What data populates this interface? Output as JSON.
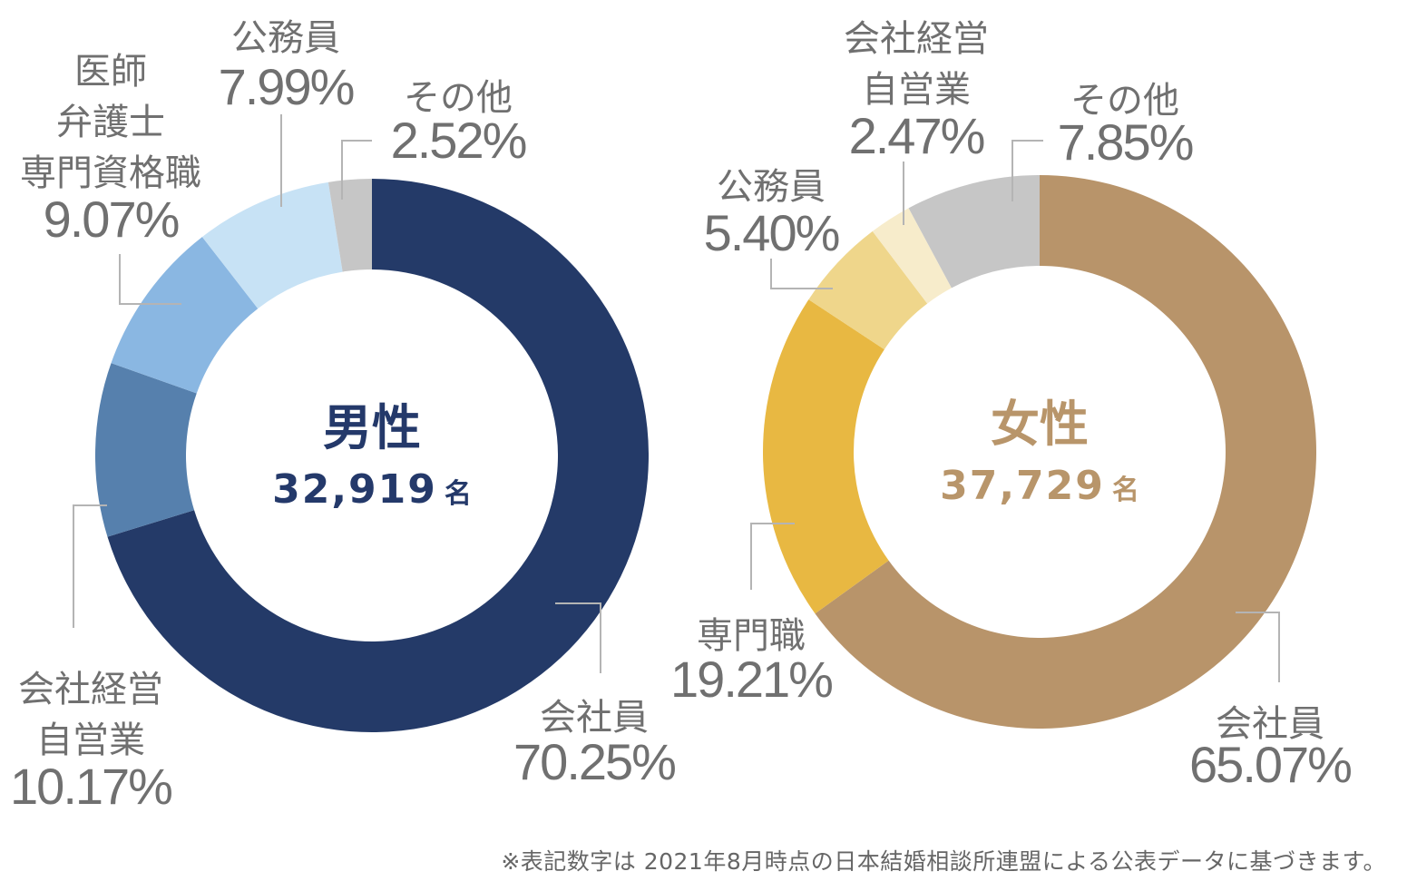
{
  "chart_data": [
    {
      "type": "pie",
      "title": "男性",
      "total": "32,919",
      "unit": "名",
      "center_color": "#24396a",
      "slices": [
        {
          "name": "会社員",
          "value": 70.25,
          "label_lines": [
            "会社員"
          ],
          "percent": "70.25%",
          "color": "#243a68"
        },
        {
          "name": "会社経営 自営業",
          "value": 10.17,
          "label_lines": [
            "会社経営",
            "自営業"
          ],
          "percent": "10.17%",
          "color": "#5680ad"
        },
        {
          "name": "医師 弁護士 専門資格職",
          "value": 9.07,
          "label_lines": [
            "医師",
            "弁護士",
            "専門資格職"
          ],
          "percent": "9.07%",
          "color": "#8ab7e2"
        },
        {
          "name": "公務員",
          "value": 7.99,
          "label_lines": [
            "公務員"
          ],
          "percent": "7.99%",
          "color": "#c7e2f5"
        },
        {
          "name": "その他",
          "value": 2.52,
          "label_lines": [
            "その他"
          ],
          "percent": "2.52%",
          "color": "#c6c6c6"
        }
      ]
    },
    {
      "type": "pie",
      "title": "女性",
      "total": "37,729",
      "unit": "名",
      "center_color": "#b8956a",
      "slices": [
        {
          "name": "会社員",
          "value": 65.07,
          "label_lines": [
            "会社員"
          ],
          "percent": "65.07%",
          "color": "#b8946a"
        },
        {
          "name": "専門職",
          "value": 19.21,
          "label_lines": [
            "専門職"
          ],
          "percent": "19.21%",
          "color": "#e8b842"
        },
        {
          "name": "公務員",
          "value": 5.4,
          "label_lines": [
            "公務員"
          ],
          "percent": "5.40%",
          "color": "#efd68b"
        },
        {
          "name": "会社経営 自営業",
          "value": 2.47,
          "label_lines": [
            "会社経営",
            "自営業"
          ],
          "percent": "2.47%",
          "color": "#f7eccb"
        },
        {
          "name": "その他",
          "value": 7.85,
          "label_lines": [
            "その他"
          ],
          "percent": "7.85%",
          "color": "#c6c6c6"
        }
      ]
    }
  ],
  "note": "※表記数字は 2021年8月時点の日本結婚相談所連盟による公表データに基づきます。",
  "colors": {
    "label_text": "#707070",
    "leader_line": "#b4b4b4"
  }
}
